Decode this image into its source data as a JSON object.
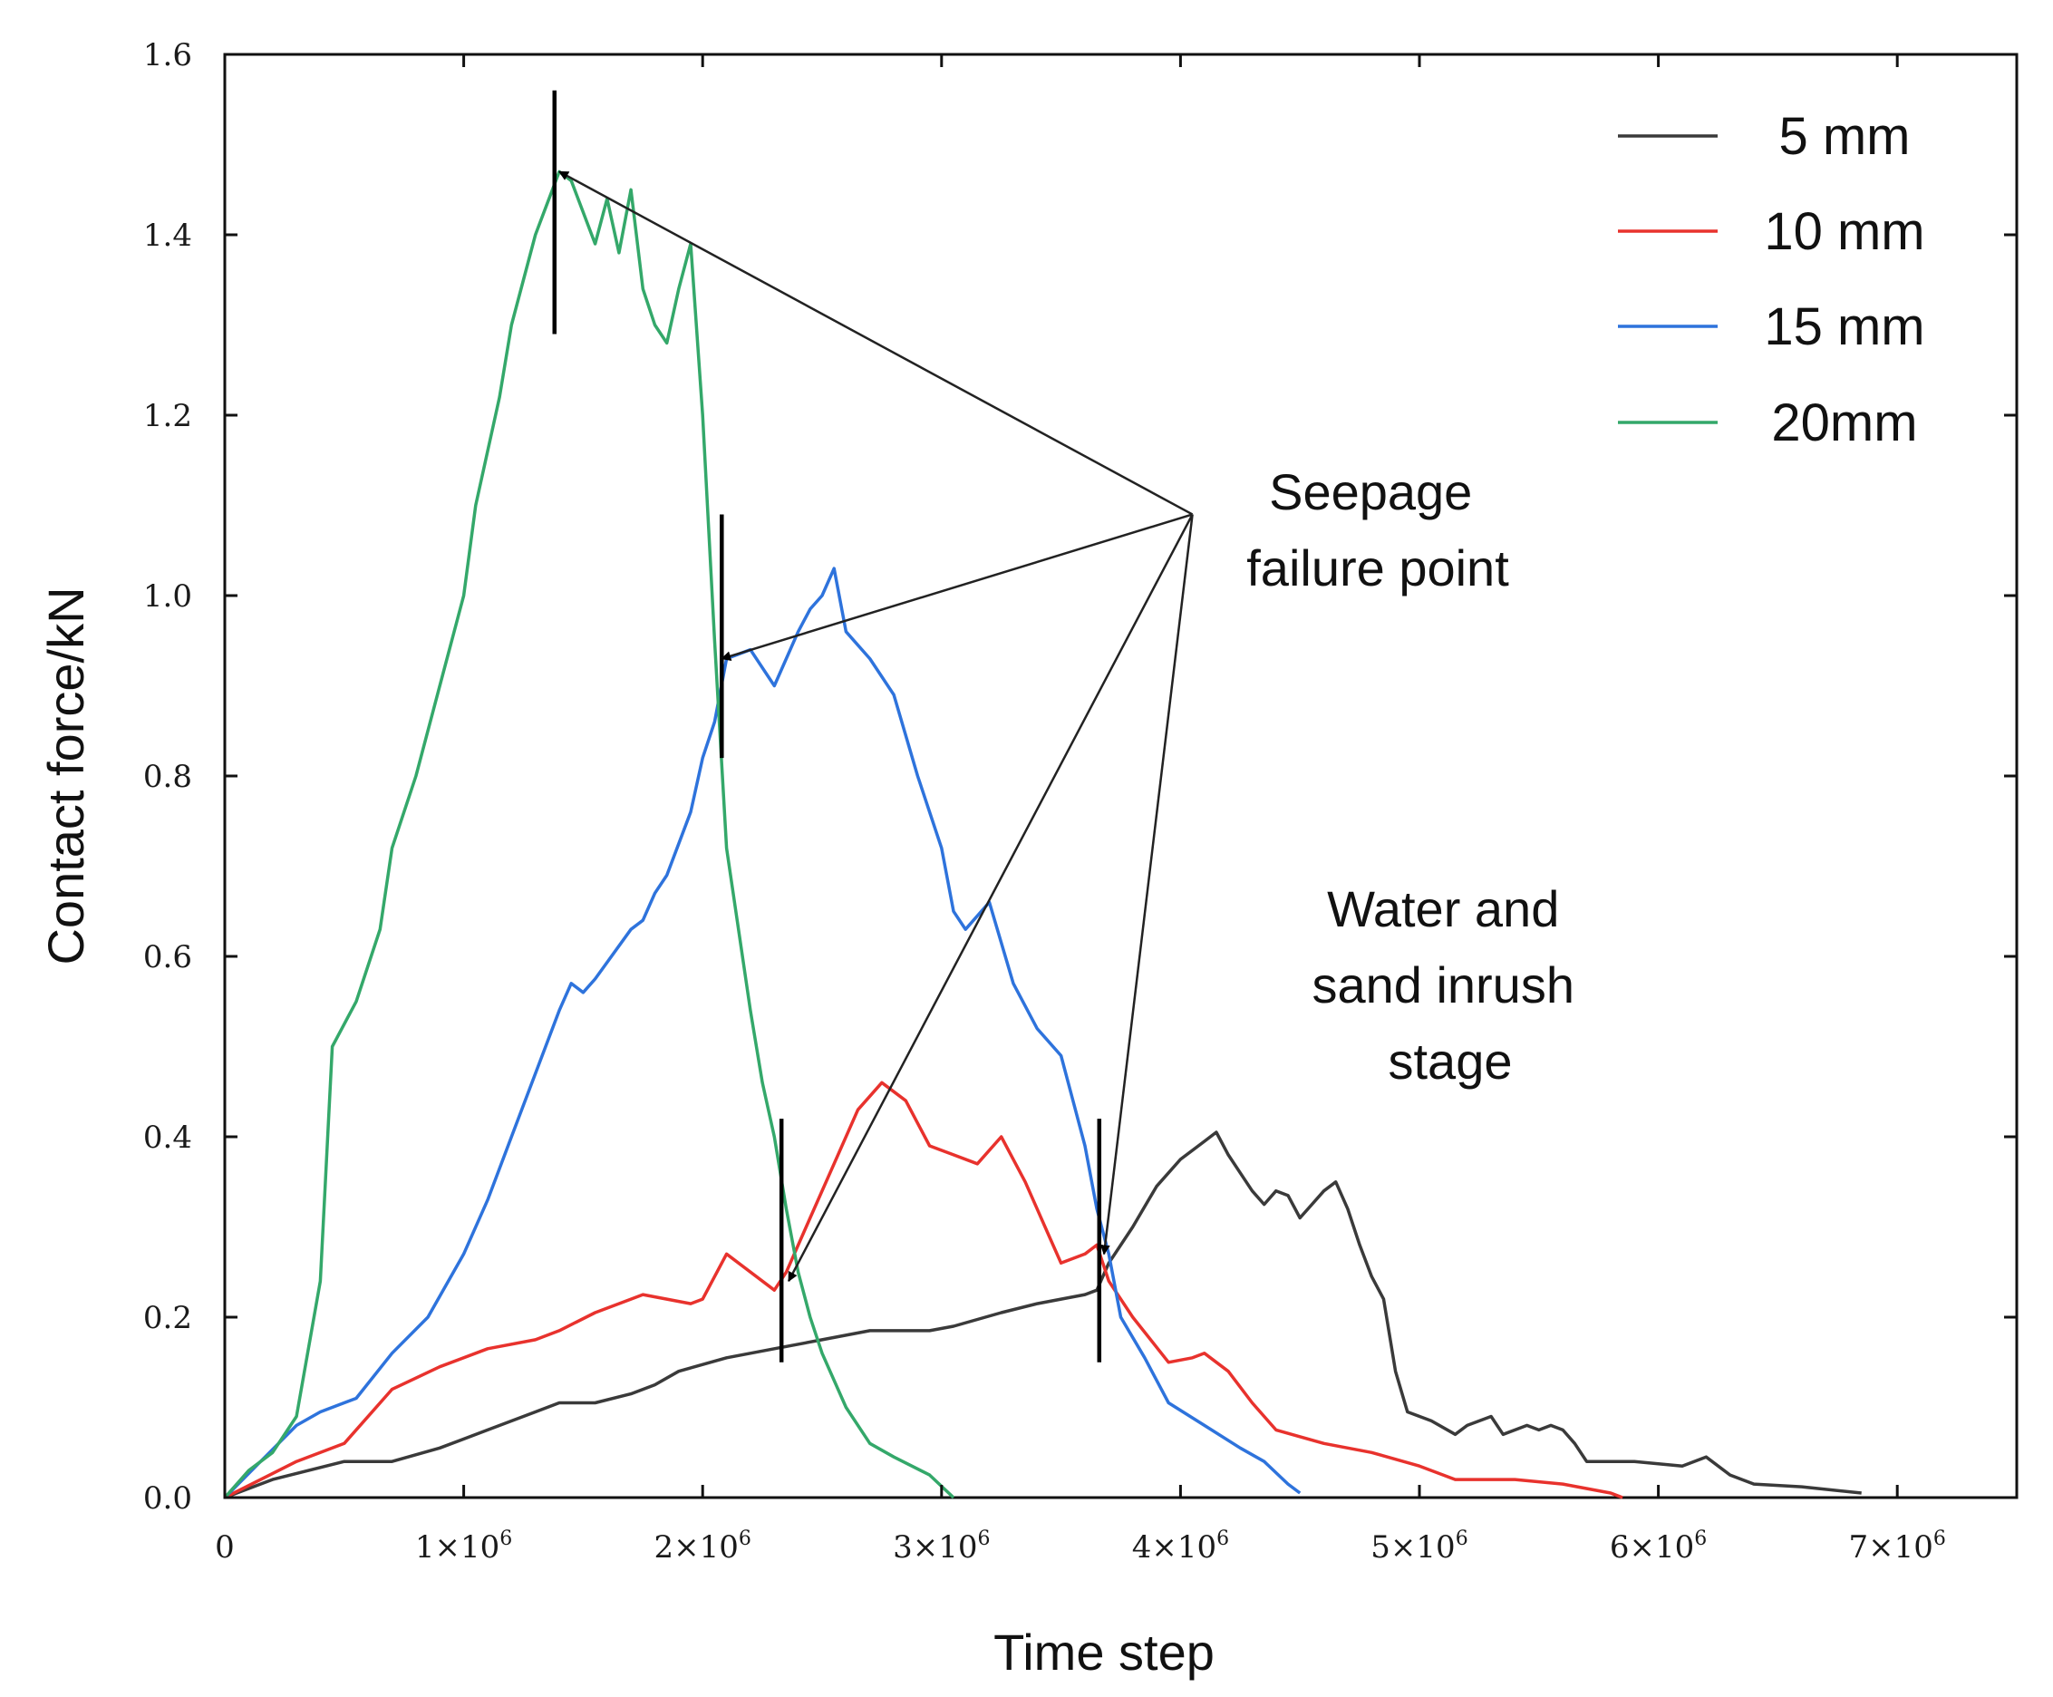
{
  "chart_data": {
    "type": "line",
    "xlabel": "Time step",
    "ylabel": "Contact force/kN",
    "xlim": [
      0,
      7500000
    ],
    "ylim": [
      0,
      1.6
    ],
    "x_ticks": [
      {
        "value": 0,
        "label": "0",
        "sup": ""
      },
      {
        "value": 1000000,
        "label": "1×10",
        "sup": "6"
      },
      {
        "value": 2000000,
        "label": "2×10",
        "sup": "6"
      },
      {
        "value": 3000000,
        "label": "3×10",
        "sup": "6"
      },
      {
        "value": 4000000,
        "label": "4×10",
        "sup": "6"
      },
      {
        "value": 5000000,
        "label": "5×10",
        "sup": "6"
      },
      {
        "value": 6000000,
        "label": "6×10",
        "sup": "6"
      },
      {
        "value": 7000000,
        "label": "7×10",
        "sup": "6"
      }
    ],
    "y_ticks": [
      {
        "value": 0.0,
        "label": "0.0"
      },
      {
        "value": 0.2,
        "label": "0.2"
      },
      {
        "value": 0.4,
        "label": "0.4"
      },
      {
        "value": 0.6,
        "label": "0.6"
      },
      {
        "value": 0.8,
        "label": "0.8"
      },
      {
        "value": 1.0,
        "label": "1.0"
      },
      {
        "value": 1.2,
        "label": "1.2"
      },
      {
        "value": 1.4,
        "label": "1.4"
      },
      {
        "value": 1.6,
        "label": "1.6"
      }
    ],
    "legend_position": "top-right",
    "series": [
      {
        "name": "5 mm",
        "color": "#3a3a3a",
        "points": [
          [
            0,
            0
          ],
          [
            200000,
            0.02
          ],
          [
            500000,
            0.04
          ],
          [
            700000,
            0.04
          ],
          [
            900000,
            0.055
          ],
          [
            1100000,
            0.075
          ],
          [
            1300000,
            0.095
          ],
          [
            1400000,
            0.105
          ],
          [
            1550000,
            0.105
          ],
          [
            1700000,
            0.115
          ],
          [
            1800000,
            0.125
          ],
          [
            1900000,
            0.14
          ],
          [
            2100000,
            0.155
          ],
          [
            2300000,
            0.165
          ],
          [
            2500000,
            0.175
          ],
          [
            2700000,
            0.185
          ],
          [
            2850000,
            0.185
          ],
          [
            2950000,
            0.185
          ],
          [
            3050000,
            0.19
          ],
          [
            3250000,
            0.205
          ],
          [
            3400000,
            0.215
          ],
          [
            3500000,
            0.22
          ],
          [
            3600000,
            0.225
          ],
          [
            3650000,
            0.23
          ],
          [
            3700000,
            0.26
          ],
          [
            3800000,
            0.3
          ],
          [
            3900000,
            0.345
          ],
          [
            4000000,
            0.375
          ],
          [
            4100000,
            0.395
          ],
          [
            4150000,
            0.405
          ],
          [
            4200000,
            0.38
          ],
          [
            4250000,
            0.36
          ],
          [
            4300000,
            0.34
          ],
          [
            4350000,
            0.325
          ],
          [
            4400000,
            0.34
          ],
          [
            4450000,
            0.335
          ],
          [
            4500000,
            0.31
          ],
          [
            4550000,
            0.325
          ],
          [
            4600000,
            0.34
          ],
          [
            4650000,
            0.35
          ],
          [
            4700000,
            0.32
          ],
          [
            4750000,
            0.28
          ],
          [
            4800000,
            0.245
          ],
          [
            4850000,
            0.22
          ],
          [
            4900000,
            0.14
          ],
          [
            4950000,
            0.095
          ],
          [
            5050000,
            0.085
          ],
          [
            5150000,
            0.07
          ],
          [
            5200000,
            0.08
          ],
          [
            5300000,
            0.09
          ],
          [
            5350000,
            0.07
          ],
          [
            5400000,
            0.075
          ],
          [
            5450000,
            0.08
          ],
          [
            5500000,
            0.075
          ],
          [
            5550000,
            0.08
          ],
          [
            5600000,
            0.075
          ],
          [
            5650000,
            0.06
          ],
          [
            5700000,
            0.04
          ],
          [
            5900000,
            0.04
          ],
          [
            6100000,
            0.035
          ],
          [
            6200000,
            0.045
          ],
          [
            6300000,
            0.025
          ],
          [
            6400000,
            0.015
          ],
          [
            6600000,
            0.012
          ],
          [
            6850000,
            0.005
          ]
        ]
      },
      {
        "name": "10 mm",
        "color": "#e8322d",
        "points": [
          [
            0,
            0
          ],
          [
            300000,
            0.04
          ],
          [
            500000,
            0.06
          ],
          [
            700000,
            0.12
          ],
          [
            900000,
            0.145
          ],
          [
            1100000,
            0.165
          ],
          [
            1300000,
            0.175
          ],
          [
            1400000,
            0.185
          ],
          [
            1550000,
            0.205
          ],
          [
            1700000,
            0.22
          ],
          [
            1750000,
            0.225
          ],
          [
            1850000,
            0.22
          ],
          [
            1950000,
            0.215
          ],
          [
            2000000,
            0.22
          ],
          [
            2100000,
            0.27
          ],
          [
            2300000,
            0.23
          ],
          [
            2350000,
            0.25
          ],
          [
            2450000,
            0.31
          ],
          [
            2550000,
            0.37
          ],
          [
            2650000,
            0.43
          ],
          [
            2750000,
            0.46
          ],
          [
            2850000,
            0.44
          ],
          [
            2950000,
            0.39
          ],
          [
            3050000,
            0.38
          ],
          [
            3150000,
            0.37
          ],
          [
            3250000,
            0.4
          ],
          [
            3350000,
            0.35
          ],
          [
            3450000,
            0.29
          ],
          [
            3500000,
            0.26
          ],
          [
            3600000,
            0.27
          ],
          [
            3650000,
            0.28
          ],
          [
            3700000,
            0.24
          ],
          [
            3800000,
            0.2
          ],
          [
            3950000,
            0.15
          ],
          [
            4050000,
            0.155
          ],
          [
            4100000,
            0.16
          ],
          [
            4200000,
            0.14
          ],
          [
            4300000,
            0.105
          ],
          [
            4400000,
            0.075
          ],
          [
            4600000,
            0.06
          ],
          [
            4800000,
            0.05
          ],
          [
            5000000,
            0.035
          ],
          [
            5150000,
            0.02
          ],
          [
            5400000,
            0.02
          ],
          [
            5600000,
            0.015
          ],
          [
            5800000,
            0.005
          ],
          [
            5850000,
            0.0
          ]
        ]
      },
      {
        "name": "15 mm",
        "color": "#2e73dc",
        "points": [
          [
            0,
            0
          ],
          [
            150000,
            0.04
          ],
          [
            300000,
            0.08
          ],
          [
            400000,
            0.095
          ],
          [
            550000,
            0.11
          ],
          [
            700000,
            0.16
          ],
          [
            850000,
            0.2
          ],
          [
            1000000,
            0.27
          ],
          [
            1100000,
            0.33
          ],
          [
            1200000,
            0.4
          ],
          [
            1300000,
            0.47
          ],
          [
            1400000,
            0.54
          ],
          [
            1450000,
            0.57
          ],
          [
            1500000,
            0.56
          ],
          [
            1550000,
            0.575
          ],
          [
            1700000,
            0.63
          ],
          [
            1750000,
            0.64
          ],
          [
            1800000,
            0.67
          ],
          [
            1850000,
            0.69
          ],
          [
            1950000,
            0.76
          ],
          [
            2000000,
            0.82
          ],
          [
            2050000,
            0.86
          ],
          [
            2100000,
            0.93
          ],
          [
            2200000,
            0.94
          ],
          [
            2300000,
            0.9
          ],
          [
            2400000,
            0.96
          ],
          [
            2450000,
            0.985
          ],
          [
            2500000,
            1.0
          ],
          [
            2550000,
            1.03
          ],
          [
            2600000,
            0.96
          ],
          [
            2700000,
            0.93
          ],
          [
            2800000,
            0.89
          ],
          [
            2900000,
            0.8
          ],
          [
            3000000,
            0.72
          ],
          [
            3050000,
            0.65
          ],
          [
            3100000,
            0.63
          ],
          [
            3200000,
            0.66
          ],
          [
            3300000,
            0.57
          ],
          [
            3400000,
            0.52
          ],
          [
            3500000,
            0.49
          ],
          [
            3550000,
            0.44
          ],
          [
            3600000,
            0.39
          ],
          [
            3650000,
            0.32
          ],
          [
            3700000,
            0.27
          ],
          [
            3750000,
            0.2
          ],
          [
            3850000,
            0.155
          ],
          [
            3950000,
            0.105
          ],
          [
            4100000,
            0.08
          ],
          [
            4250000,
            0.055
          ],
          [
            4350000,
            0.04
          ],
          [
            4450000,
            0.015
          ],
          [
            4500000,
            0.005
          ]
        ]
      },
      {
        "name": "20mm",
        "color": "#34a86a",
        "points": [
          [
            0,
            0
          ],
          [
            100000,
            0.03
          ],
          [
            200000,
            0.05
          ],
          [
            300000,
            0.09
          ],
          [
            400000,
            0.24
          ],
          [
            450000,
            0.5
          ],
          [
            550000,
            0.55
          ],
          [
            650000,
            0.63
          ],
          [
            700000,
            0.72
          ],
          [
            800000,
            0.8
          ],
          [
            900000,
            0.9
          ],
          [
            1000000,
            1.0
          ],
          [
            1050000,
            1.1
          ],
          [
            1150000,
            1.22
          ],
          [
            1200000,
            1.3
          ],
          [
            1300000,
            1.4
          ],
          [
            1400000,
            1.47
          ],
          [
            1450000,
            1.46
          ],
          [
            1550000,
            1.39
          ],
          [
            1600000,
            1.44
          ],
          [
            1650000,
            1.38
          ],
          [
            1700000,
            1.45
          ],
          [
            1750000,
            1.34
          ],
          [
            1800000,
            1.3
          ],
          [
            1850000,
            1.28
          ],
          [
            1900000,
            1.34
          ],
          [
            1950000,
            1.39
          ],
          [
            2000000,
            1.2
          ],
          [
            2050000,
            0.95
          ],
          [
            2100000,
            0.72
          ],
          [
            2200000,
            0.54
          ],
          [
            2250000,
            0.46
          ],
          [
            2300000,
            0.4
          ],
          [
            2350000,
            0.32
          ],
          [
            2400000,
            0.25
          ],
          [
            2450000,
            0.2
          ],
          [
            2500000,
            0.16
          ],
          [
            2600000,
            0.1
          ],
          [
            2700000,
            0.06
          ],
          [
            2800000,
            0.045
          ],
          [
            2950000,
            0.025
          ],
          [
            3050000,
            0.0
          ]
        ]
      }
    ],
    "failure_markers": [
      {
        "x": 1380000,
        "y_top": 1.56,
        "y_bottom": 1.29
      },
      {
        "x": 2080000,
        "y_top": 1.09,
        "y_bottom": 0.82
      },
      {
        "x": 2330000,
        "y_top": 0.42,
        "y_bottom": 0.15
      },
      {
        "x": 3660000,
        "y_top": 0.42,
        "y_bottom": 0.15
      }
    ],
    "annotation_origin": {
      "x": 4050000,
      "y": 1.09
    },
    "annotation_targets": [
      {
        "x": 1400000,
        "y": 1.47
      },
      {
        "x": 2080000,
        "y": 0.93
      },
      {
        "x": 2360000,
        "y": 0.24
      },
      {
        "x": 3680000,
        "y": 0.27
      }
    ],
    "annotations": [
      {
        "lines": [
          "Seepage",
          "failure point"
        ]
      },
      {
        "lines": [
          "Water and",
          "sand inrush",
          "stage"
        ]
      }
    ]
  }
}
